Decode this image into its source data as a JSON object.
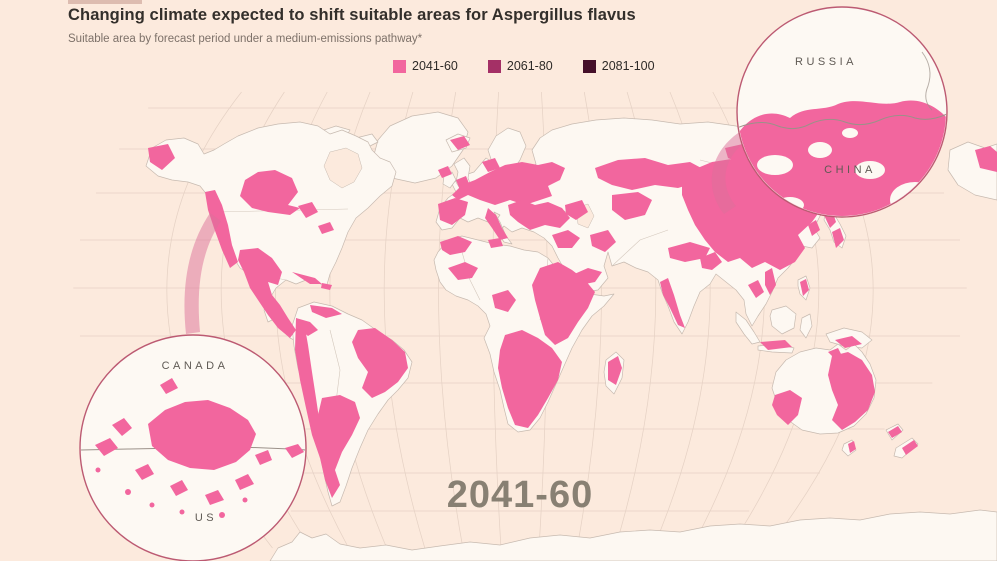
{
  "header": {
    "title": "Changing climate expected to shift suitable areas for Aspergillus flavus",
    "subtitle": "Suitable area by forecast period under a medium-emissions pathway*"
  },
  "legend": {
    "items": [
      {
        "label": "2041-60",
        "color": "#f2669e"
      },
      {
        "label": "2061-80",
        "color": "#a43066"
      },
      {
        "label": "2081-100",
        "color": "#45102a"
      }
    ]
  },
  "map": {
    "period_label": "2041-60",
    "insets": {
      "northeast_asia": {
        "top_label": "RUSSIA",
        "bottom_label": "CHINA"
      },
      "north_america": {
        "top_label": "CANADA",
        "bottom_label": "US"
      }
    },
    "colors": {
      "ocean": "#fceadd",
      "land": "#fdf8f2",
      "suitable": "#f2669e",
      "graticule": "#e5d1c4",
      "inset_ring": "#bc5a72",
      "connector": "#db6f9a"
    }
  },
  "chart_data": {
    "type": "map",
    "title": "Changing climate expected to shift suitable areas for Aspergillus flavus",
    "subtitle": "Suitable area by forecast period under a medium-emissions pathway*",
    "displayed_period": "2041-60",
    "periods": [
      "2041-60",
      "2061-80",
      "2081-100"
    ],
    "period_colors": [
      "#f2669e",
      "#a43066",
      "#45102a"
    ],
    "legend_position": "top-center",
    "insets": [
      {
        "position": "top-right",
        "labels": [
          "RUSSIA",
          "CHINA"
        ],
        "focus": "Russia-China border region"
      },
      {
        "position": "bottom-left",
        "labels": [
          "CANADA",
          "US"
        ],
        "focus": "Canada-US border region"
      }
    ],
    "suitable_areas_2041_60": [
      "Central Canada (Prairie provinces)",
      "Pacific coast and western US",
      "Texas and Mexico",
      "Central America",
      "Caribbean islands",
      "Andes",
      "Eastern Brazil",
      "Northern Argentina",
      "Patagonia",
      "Iceland (parts)",
      "Southern and central Europe",
      "Balkans and Turkey",
      "Levant and Middle East (parts)",
      "North African coast",
      "West African coast (parts)",
      "East Africa",
      "Southern Africa",
      "Madagascar (parts)",
      "Kazakh steppe and Central Asia",
      "Southern Siberia",
      "Mongolia and northern China",
      "Eastern China",
      "Korea and Japan (parts)",
      "Western India",
      "Southeast Asia (parts)",
      "Eastern Australia",
      "Southwestern Australia",
      "New Zealand (parts)"
    ]
  }
}
